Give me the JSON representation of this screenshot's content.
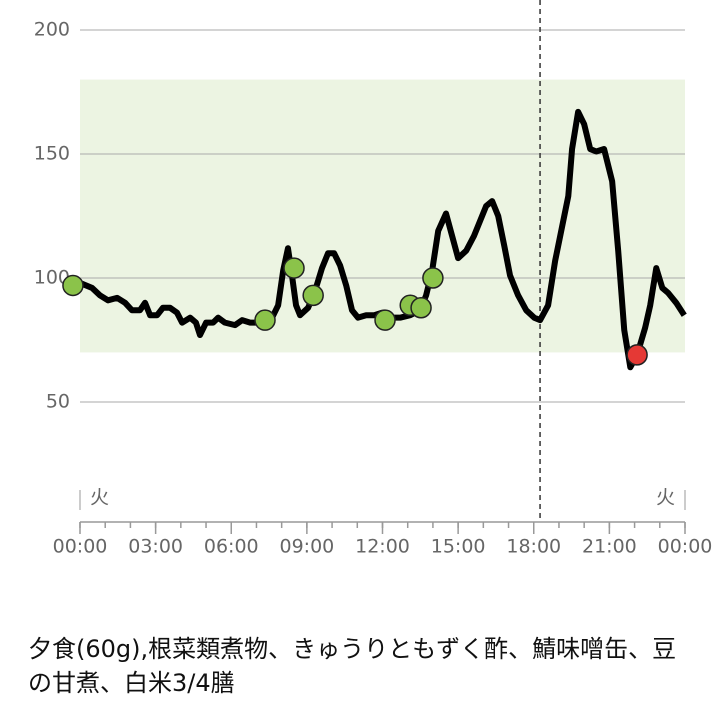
{
  "chart_data": {
    "type": "line",
    "ylim": [
      0,
      200
    ],
    "yticks": [
      50,
      100,
      150,
      200
    ],
    "grid": true,
    "xlim": [
      0,
      24
    ],
    "xticks": [
      {
        "value": 0,
        "label": "00:00"
      },
      {
        "value": 3,
        "label": "03:00"
      },
      {
        "value": 6,
        "label": "06:00"
      },
      {
        "value": 9,
        "label": "09:00"
      },
      {
        "value": 12,
        "label": "12:00"
      },
      {
        "value": 15,
        "label": "15:00"
      },
      {
        "value": 18,
        "label": "18:00"
      },
      {
        "value": 21,
        "label": "21:00"
      },
      {
        "value": 24,
        "label": "00:00"
      }
    ],
    "xminorticks": [
      0,
      1,
      2,
      3,
      4,
      5,
      6,
      7,
      8,
      9,
      10,
      11,
      12,
      13,
      14,
      15,
      16,
      17,
      18,
      19,
      20,
      21,
      22,
      23,
      24
    ],
    "target_range": [
      70,
      180
    ],
    "range_color": "#ecf4e2",
    "now_x": 18.25,
    "day_labels": [
      "火",
      "火"
    ],
    "series": [
      {
        "type": "line",
        "color": "#000000",
        "x": [
          -0.28,
          0,
          0.48,
          0.79,
          1.11,
          1.47,
          1.79,
          2.06,
          2.38,
          2.58,
          2.78,
          3.06,
          3.29,
          3.57,
          3.85,
          4.05,
          4.37,
          4.6,
          4.76,
          5.0,
          5.28,
          5.48,
          5.75,
          6.15,
          6.43,
          6.75,
          7.06,
          7.34,
          7.62,
          7.86,
          8.06,
          8.25,
          8.41,
          8.57,
          8.73,
          9.05,
          9.33,
          9.6,
          9.84,
          10.08,
          10.32,
          10.56,
          10.79,
          11.03,
          11.35,
          11.67,
          11.98,
          12.3,
          12.7,
          13.1,
          13.49,
          13.73,
          13.97,
          14.21,
          14.52,
          14.76,
          15.0,
          15.32,
          15.63,
          15.87,
          16.11,
          16.35,
          16.59,
          16.83,
          17.06,
          17.38,
          17.7,
          18.02,
          18.25,
          18.57,
          18.85,
          19.05,
          19.37,
          19.52,
          19.76,
          20.0,
          20.24,
          20.48,
          20.79,
          21.11,
          21.35,
          21.59,
          21.83,
          22.1,
          22.42,
          22.62,
          22.86,
          23.1,
          23.33,
          23.65,
          23.97
        ],
        "values": [
          97,
          98,
          96,
          93,
          91,
          92,
          90,
          87,
          87,
          90,
          85,
          85,
          88,
          88,
          86,
          82,
          84,
          82,
          77,
          82,
          82,
          84,
          82,
          81,
          83,
          82,
          82,
          83,
          84,
          89,
          103,
          112,
          101,
          89,
          85,
          88,
          95,
          104,
          110,
          110,
          105,
          97,
          87,
          84,
          85,
          85,
          86,
          84,
          84,
          85,
          87,
          93,
          103,
          119,
          126,
          117,
          108,
          111,
          117,
          123,
          129,
          131,
          125,
          113,
          101,
          93,
          87,
          84,
          83,
          89,
          107,
          117,
          133,
          152,
          167,
          162,
          152,
          151,
          152,
          139,
          111,
          79,
          64,
          69,
          80,
          89,
          104,
          96,
          94,
          90,
          85
        ]
      },
      {
        "type": "scatter",
        "color": "#8bc34a",
        "x": [
          -0.28,
          7.34,
          8.49,
          9.25,
          12.1,
          13.1,
          13.53,
          14.0
        ],
        "values": [
          97,
          83,
          104,
          93,
          83,
          89,
          88,
          100
        ]
      },
      {
        "type": "scatter",
        "color": "#e53935",
        "x": [
          22.1
        ],
        "values": [
          69
        ]
      }
    ]
  },
  "meal_text": "夕食(60g),根菜類煮物、きゅうりともずく酢、鯖味噌缶、豆の甘煮、白米3/4膳"
}
